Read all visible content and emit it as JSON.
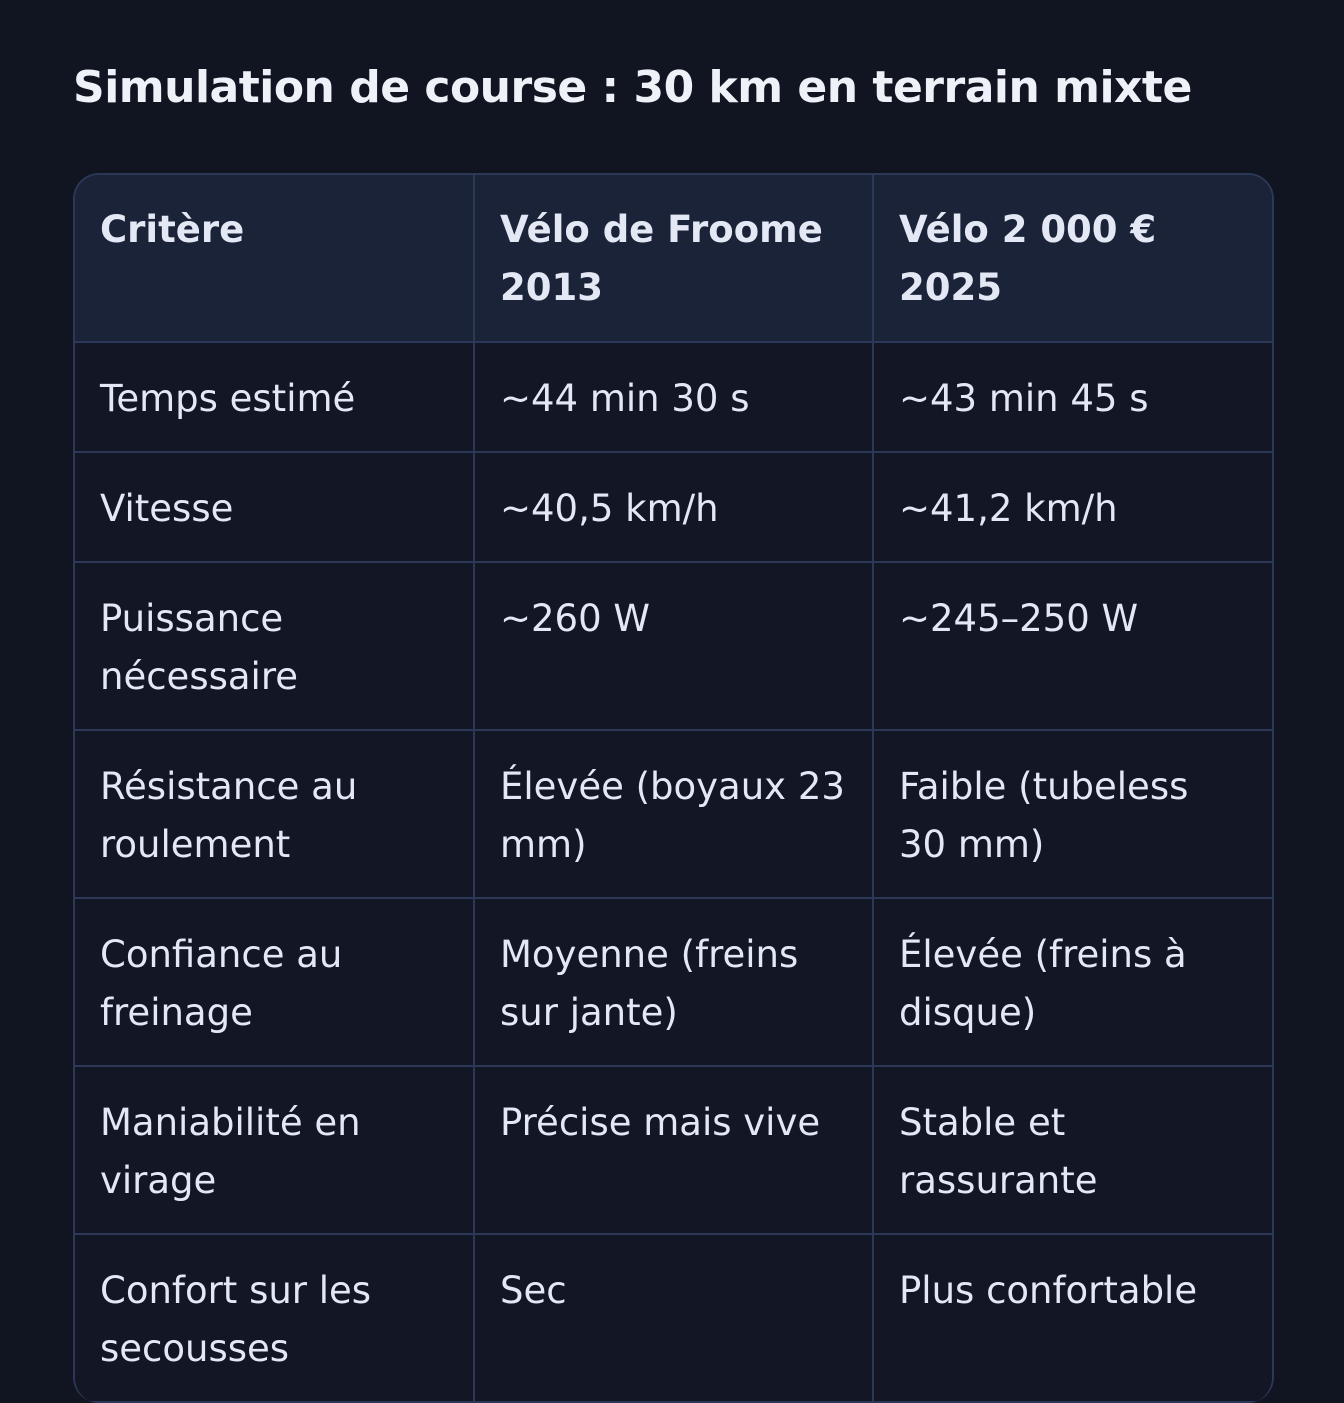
{
  "title": "Simulation de course : 30 km en terrain mixte",
  "table": {
    "headers": [
      "Critère",
      "Vélo de Froome 2013",
      "Vélo 2 000 € 2025"
    ],
    "rows": [
      [
        "Temps estimé",
        "~44 min 30 s",
        "~43 min 45 s"
      ],
      [
        "Vitesse",
        "~40,5 km/h",
        "~41,2 km/h"
      ],
      [
        "Puissance nécessaire",
        "~260 W",
        "~245–250 W"
      ],
      [
        "Résistance au roulement",
        "Élevée (boyaux 23 mm)",
        "Faible (tubeless 30 mm)"
      ],
      [
        "Confiance au freinage",
        "Moyenne (freins sur jante)",
        "Élevée (freins à disque)"
      ],
      [
        "Maniabilité en virage",
        "Précise mais vive",
        "Stable et rassurante"
      ],
      [
        "Confort sur les secousses",
        "Sec",
        "Plus confortable"
      ]
    ]
  },
  "colors": {
    "background": "#111522",
    "header": "#1b2339",
    "border": "#2c3858",
    "text": "#e3e8f4"
  }
}
